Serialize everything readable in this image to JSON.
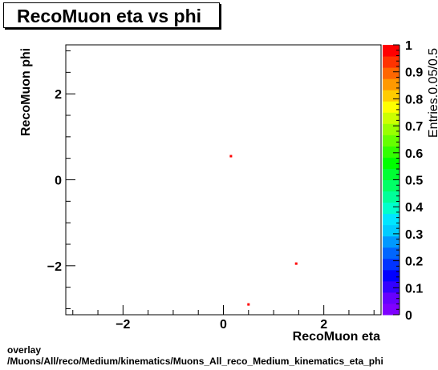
{
  "chart_data": {
    "type": "heatmap",
    "title": "RecoMuon eta vs phi",
    "xlabel": "RecoMuon eta",
    "ylabel": "RecoMuon phi",
    "zlabel": "Entries.0.05/0.5",
    "xlim": [
      -3.14,
      3.14
    ],
    "ylim": [
      -3.14,
      3.14
    ],
    "zlim": [
      0,
      1
    ],
    "x_ticks": [
      -2,
      0,
      2
    ],
    "x_tick_labels": [
      "−2",
      "0",
      "2"
    ],
    "y_ticks": [
      -2,
      0,
      2
    ],
    "y_tick_labels": [
      "−2",
      "0",
      "2"
    ],
    "z_ticks": [
      0,
      0.1,
      0.2,
      0.3,
      0.4,
      0.5,
      0.6,
      0.7,
      0.8,
      0.9,
      1
    ],
    "z_tick_labels": [
      "0",
      "0.1",
      "0.2",
      "0.3",
      "0.4",
      "0.5",
      "0.6",
      "0.7",
      "0.8",
      "0.9",
      "1"
    ],
    "cells": [
      {
        "x": 0.15,
        "y": 0.55,
        "z": 1
      },
      {
        "x": 1.45,
        "y": -1.95,
        "z": 1
      },
      {
        "x": 0.5,
        "y": -2.9,
        "z": 1
      }
    ],
    "palette": [
      "#7f00ff",
      "#6600ff",
      "#3300ff",
      "#0000ff",
      "#0033ff",
      "#0066ff",
      "#0099ff",
      "#00ccff",
      "#00e6ff",
      "#00ffcc",
      "#00ff99",
      "#00ff66",
      "#00ff33",
      "#00ff00",
      "#33ff00",
      "#66ff00",
      "#99ff00",
      "#ccff00",
      "#ffff00",
      "#ffcc00",
      "#ff9900",
      "#ff6600",
      "#ff3300",
      "#ff0000"
    ],
    "grid": false
  },
  "footer": {
    "line1": "overlay",
    "line2": "/Muons/All/reco/Medium/kinematics/Muons_All_reco_Medium_kinematics_eta_phi"
  }
}
